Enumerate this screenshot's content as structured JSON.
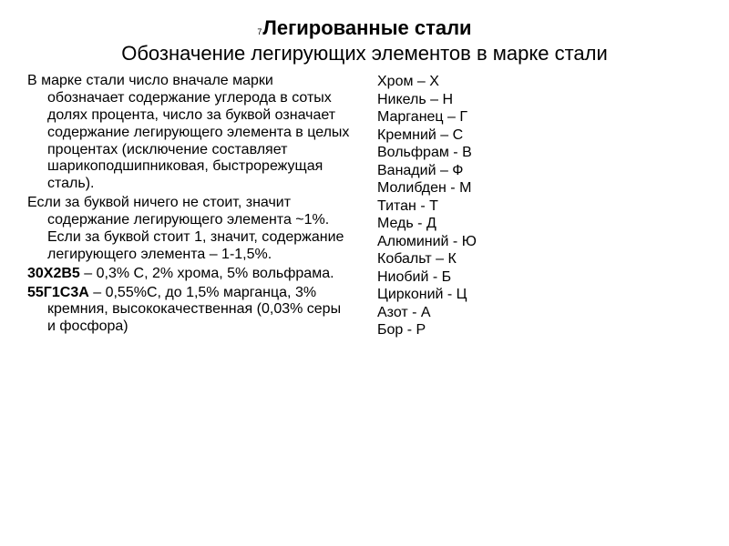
{
  "header": {
    "num": "7",
    "title": "Легированные стали",
    "subtitle": "Обозначение легирующих элементов в марке стали"
  },
  "left": {
    "p1": "В марке стали число вначале марки обозначает содержание углерода в сотых долях процента, число за буквой означает содержание легирующего элемента в целых процентах (исключение составляет шарикоподшипниковая, быстрорежущая сталь).",
    "p2": "Если за буквой ничего не стоит, значит содержание легирующего элемента ~1%. Если за буквой стоит 1, значит, содержание легирующего элемента – 1-1,5%.",
    "ex1_code": "30Х2В5",
    "ex1_rest": " – 0,3% С, 2% хрома, 5% вольфрама.",
    "ex2_code": "55Г1С3А",
    "ex2_rest": " – 0,55%С, до 1,5% марганца, 3% кремния, высококачественная (0,03% серы и фосфора)"
  },
  "elements": [
    "Хром – Х",
    "Никель – Н",
    "Марганец – Г",
    "Кремний – С",
    "Вольфрам - В",
    "Ванадий – Ф",
    "Молибден - М",
    "Титан - Т",
    "Медь - Д",
    "Алюминий - Ю",
    "Кобальт – К",
    "Ниобий - Б",
    "Цирконий - Ц",
    "Азот - А",
    "Бор - Р"
  ]
}
